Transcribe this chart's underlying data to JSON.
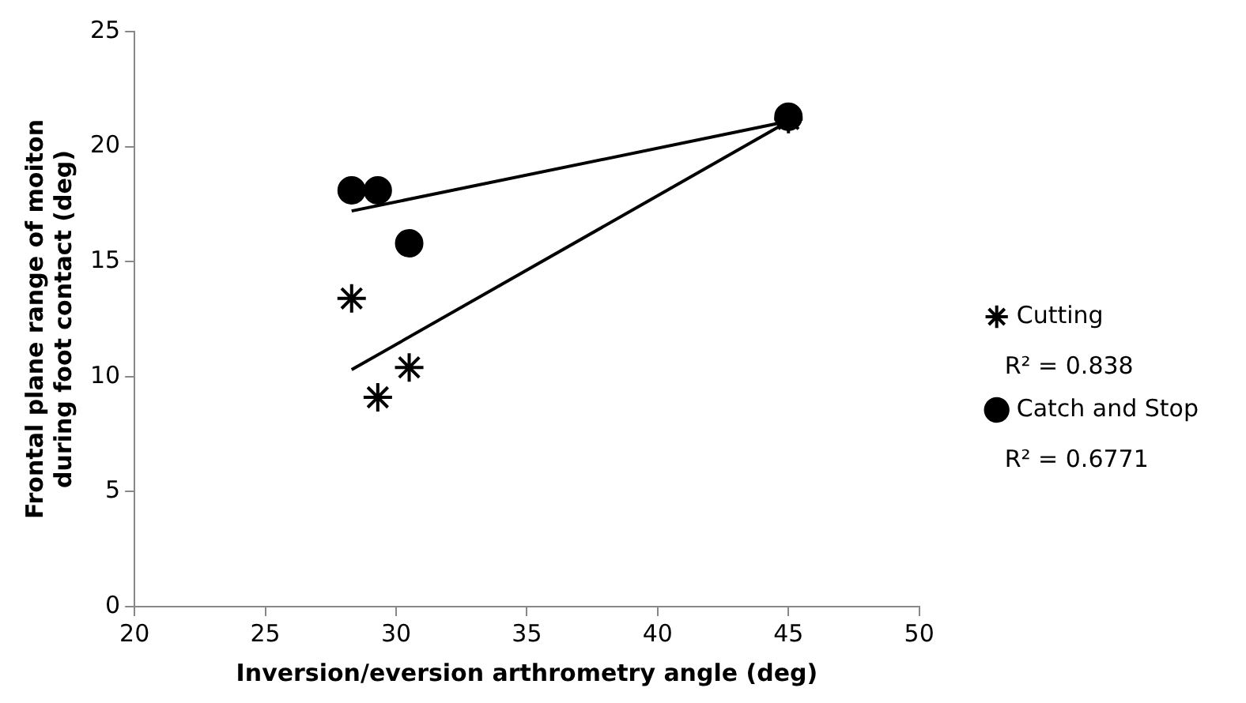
{
  "chart_data": {
    "type": "scatter",
    "xlabel": "Inversion/eversion arthrometry angle (deg)",
    "ylabel": "Frontal plane range of moiton\nduring foot contact (deg)",
    "xlim": [
      20,
      50
    ],
    "xticks": [
      20,
      25,
      30,
      35,
      40,
      45,
      50
    ],
    "ylim": [
      0,
      25
    ],
    "yticks": [
      0,
      5,
      10,
      15,
      20,
      25
    ],
    "grid": false,
    "legend": "right",
    "series": [
      {
        "name": "Cutting",
        "marker": "cross",
        "color": "#000000",
        "x": [
          28.3,
          29.3,
          30.5,
          45
        ],
        "values": [
          13.4,
          9.1,
          10.4,
          21.2
        ]
      },
      {
        "name": "Catch and Stop",
        "marker": "circle",
        "color": "#000000",
        "x": [
          28.3,
          29.3,
          30.5,
          45
        ],
        "values": [
          18.1,
          18.1,
          15.8,
          21.3
        ]
      },
      {
        "type": "line",
        "marker": "none",
        "color": "#000000",
        "x": [
          28.3,
          45
        ],
        "values": [
          10.3,
          21.1
        ]
      },
      {
        "type": "line",
        "marker": "none",
        "color": "#000000",
        "x": [
          28.3,
          45
        ],
        "values": [
          17.2,
          21.1
        ]
      }
    ],
    "annotations": [
      "R² = 0.838",
      "R² = 0.6771"
    ]
  }
}
